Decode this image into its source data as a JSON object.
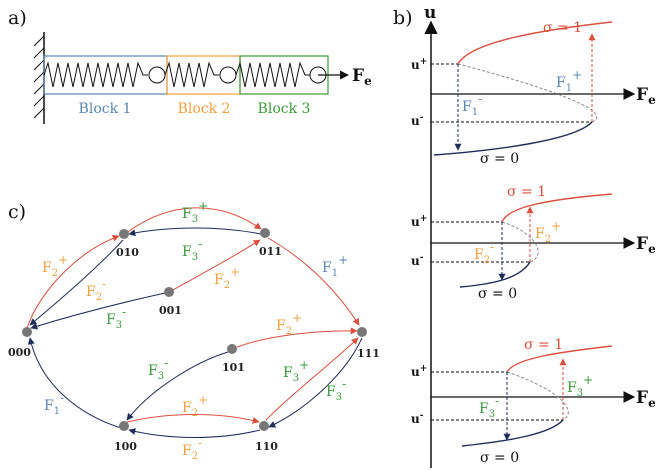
{
  "panels": {
    "a": "a)",
    "b": "b)",
    "c": "c)"
  },
  "colors": {
    "blue": "#5b86b0",
    "orange": "#f0a040",
    "green": "#3a9a3a",
    "red": "#d9503f",
    "navy": "#1f2d5a",
    "dark": "#111111"
  },
  "panel_a": {
    "blocks": [
      "Block 1",
      "Block 2",
      "Block 3"
    ],
    "force": {
      "main": "F",
      "sub": "e"
    }
  },
  "panel_b": {
    "axis_u": "u",
    "axis_fe": {
      "main": "F",
      "sub": "e"
    },
    "sigma1": "σ = 1",
    "sigma0": "σ = 0",
    "u_plus": "u",
    "u_plus_sup": "+",
    "u_minus": "u",
    "u_minus_sup": "-",
    "sub1": {
      "up": {
        "main": "F",
        "sub": "1",
        "sup": "+"
      },
      "down": {
        "main": "F",
        "sub": "1",
        "sup": "-"
      }
    },
    "sub2": {
      "up": {
        "main": "F",
        "sub": "2",
        "sup": "+"
      },
      "down": {
        "main": "F",
        "sub": "2",
        "sup": "-"
      }
    },
    "sub3": {
      "up": {
        "main": "F",
        "sub": "3",
        "sup": "+"
      },
      "down": {
        "main": "F",
        "sub": "3",
        "sup": "-"
      }
    }
  },
  "panel_c": {
    "nodes": [
      "000",
      "010",
      "011",
      "001",
      "111",
      "101",
      "100",
      "110"
    ],
    "edges": [
      {
        "label": "F",
        "sub": "3",
        "sup": "+"
      },
      {
        "label": "F",
        "sub": "3",
        "sup": "-"
      },
      {
        "label": "F",
        "sub": "2",
        "sup": "+"
      },
      {
        "label": "F",
        "sub": "2",
        "sup": "-"
      },
      {
        "label": "F",
        "sub": "2",
        "sup": "+"
      },
      {
        "label": "F",
        "sub": "3",
        "sup": "-"
      },
      {
        "label": "F",
        "sub": "1",
        "sup": "+"
      },
      {
        "label": "F",
        "sub": "2",
        "sup": "+"
      },
      {
        "label": "F",
        "sub": "3",
        "sup": "-"
      },
      {
        "label": "F",
        "sub": "3",
        "sup": "+"
      },
      {
        "label": "F",
        "sub": "3",
        "sup": "-"
      },
      {
        "label": "F",
        "sub": "1",
        "sup": "-"
      },
      {
        "label": "F",
        "sub": "2",
        "sup": "+"
      },
      {
        "label": "F",
        "sub": "2",
        "sup": "-"
      }
    ]
  }
}
